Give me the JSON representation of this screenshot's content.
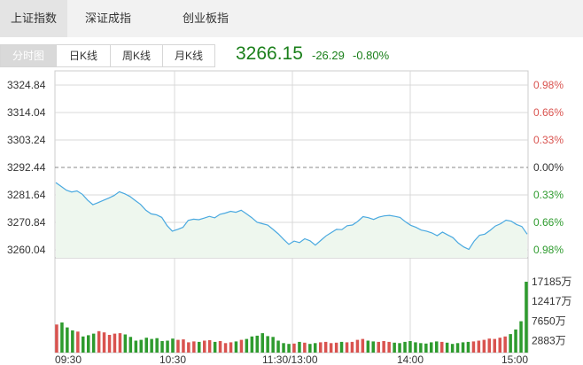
{
  "top_tabs": [
    {
      "label": "上证指数",
      "active": true
    },
    {
      "label": "深证成指",
      "active": false
    },
    {
      "label": "创业板指",
      "active": false
    }
  ],
  "sub_tabs": [
    {
      "label": "分时图",
      "active": true
    },
    {
      "label": "日K线",
      "active": false
    },
    {
      "label": "周K线",
      "active": false
    },
    {
      "label": "月K线",
      "active": false
    }
  ],
  "quote": {
    "price": "3266.15",
    "change": "-26.29",
    "change_pct": "-0.80%"
  },
  "colors": {
    "line": "#4aa9e0",
    "fill": "#eef7ee",
    "up": "#d9534f",
    "down": "#2e9b2e",
    "grid": "#d8d8d8"
  },
  "chart_data": {
    "type": "line",
    "prev_close": 3292.44,
    "price_axis": {
      "ticks": [
        "3324.84",
        "3314.04",
        "3303.24",
        "3292.44",
        "3281.64",
        "3270.84",
        "3260.04"
      ],
      "values": [
        3324.84,
        3314.04,
        3303.24,
        3292.44,
        3281.64,
        3270.84,
        3260.04
      ]
    },
    "pct_axis": {
      "ticks": [
        "0.98%",
        "0.66%",
        "0.33%",
        "0.00%",
        "0.33%",
        "0.66%",
        "0.98%"
      ],
      "color_class": [
        "up",
        "up",
        "up",
        "flat",
        "down",
        "down",
        "down"
      ]
    },
    "time_labels": [
      "09:30",
      "10:30",
      "11:30/13:00",
      "14:00",
      "15:00"
    ],
    "volume_ticks": [
      "17185万",
      "12417万",
      "7650万",
      "2883万"
    ],
    "volume_values": [
      17185,
      12417,
      7650,
      2883
    ],
    "price_series": [
      3286.5,
      3285.0,
      3283.5,
      3282.8,
      3283.2,
      3281.9,
      3279.6,
      3277.8,
      3278.6,
      3279.5,
      3280.4,
      3281.4,
      3282.9,
      3282.1,
      3281.0,
      3279.4,
      3277.9,
      3275.6,
      3274.2,
      3273.8,
      3272.8,
      3269.6,
      3267.4,
      3268.1,
      3268.9,
      3271.6,
      3272.1,
      3271.9,
      3272.5,
      3273.2,
      3272.6,
      3274.0,
      3274.5,
      3275.2,
      3274.8,
      3275.6,
      3274.2,
      3272.7,
      3270.9,
      3270.3,
      3269.8,
      3268.1,
      3266.3,
      3264.2,
      3262.2,
      3263.5,
      3262.9,
      3264.4,
      3263.6,
      3261.9,
      3263.7,
      3265.5,
      3266.8,
      3268.1,
      3268.0,
      3269.5,
      3269.8,
      3271.2,
      3273.1,
      3272.7,
      3272.0,
      3272.9,
      3273.4,
      3273.6,
      3273.2,
      3272.8,
      3271.1,
      3269.7,
      3268.9,
      3267.8,
      3267.4,
      3266.7,
      3265.6,
      3267.0,
      3265.9,
      3264.8,
      3262.7,
      3261.2,
      3260.2,
      3263.5,
      3265.8,
      3266.2,
      3267.7,
      3269.4,
      3270.3,
      3271.7,
      3271.3,
      3270.0,
      3269.2,
      3266.2
    ],
    "volume_series": [
      6800,
      7300,
      6100,
      5400,
      5100,
      3900,
      4200,
      4600,
      5200,
      4900,
      4300,
      4600,
      4700,
      4400,
      3800,
      2900,
      3100,
      3600,
      3300,
      3500,
      2800,
      2900,
      3400,
      3100,
      3200,
      2500,
      2700,
      2600,
      2900,
      3000,
      2600,
      2800,
      2300,
      2500,
      2700,
      3100,
      3300,
      3900,
      4100,
      4700,
      4000,
      3800,
      2900,
      2300,
      2100,
      2200,
      2600,
      2400,
      2100,
      2300,
      2500,
      2600,
      2300,
      2400,
      2600,
      2500,
      2600,
      3100,
      3300,
      2900,
      2700,
      2600,
      2800,
      2600,
      2400,
      2300,
      2600,
      2800,
      2500,
      2300,
      2200,
      2500,
      2700,
      2600,
      2400,
      2100,
      2300,
      2500,
      2600,
      2700,
      2900,
      3100,
      3400,
      3300,
      3600,
      3900,
      4500,
      5600,
      7600,
      17185
    ]
  }
}
